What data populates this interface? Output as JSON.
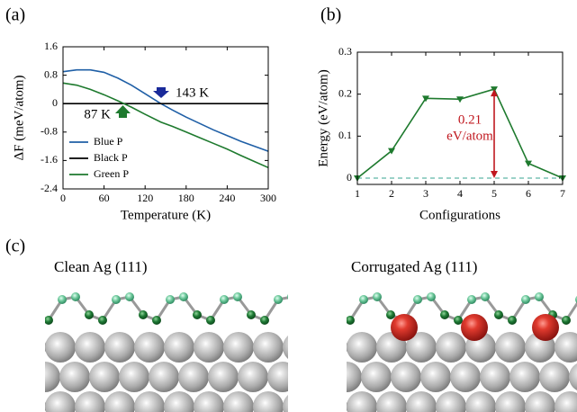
{
  "chart_data": [
    {
      "type": "line",
      "panel": "(a)",
      "xlabel": "Temperature (K)",
      "ylabel": "ΔF (meV/atom)",
      "x": [
        0,
        20,
        40,
        60,
        80,
        100,
        120,
        143,
        160,
        180,
        200,
        220,
        240,
        260,
        280,
        300
      ],
      "series": [
        {
          "name": "Blue P",
          "color": "#1f5fa6",
          "values": [
            0.9,
            0.95,
            0.95,
            0.88,
            0.72,
            0.52,
            0.28,
            0,
            -0.18,
            -0.38,
            -0.56,
            -0.74,
            -0.9,
            -1.06,
            -1.2,
            -1.34
          ]
        },
        {
          "name": "Black P",
          "color": "#000000",
          "values": [
            0,
            0,
            0,
            0,
            0,
            0,
            0,
            0,
            0,
            0,
            0,
            0,
            0,
            0,
            0,
            0
          ]
        },
        {
          "name": "Green P",
          "color": "#1e7a2e",
          "values": [
            0.58,
            0.52,
            0.4,
            0.25,
            0.08,
            -0.1,
            -0.3,
            -0.52,
            -0.64,
            -0.8,
            -0.96,
            -1.12,
            -1.28,
            -1.46,
            -1.63,
            -1.8
          ]
        }
      ],
      "annotations": [
        {
          "text": "143 K",
          "color": "#1a2a9a"
        },
        {
          "text": "87 K",
          "color": "#1e7a2e"
        }
      ],
      "xlim": [
        0,
        300
      ],
      "xticks": [
        0,
        60,
        120,
        180,
        240,
        300
      ],
      "ylim": [
        -2.4,
        1.6
      ],
      "yticks": [
        -2.4,
        -1.6,
        -0.8,
        0,
        0.8,
        1.6
      ],
      "legend": "lower left"
    },
    {
      "type": "line",
      "panel": "(b)",
      "xlabel": "Configurations",
      "ylabel": "Energy (eV/atom)",
      "x": [
        1,
        2,
        3,
        4,
        5,
        6,
        7
      ],
      "series": [
        {
          "color": "#1e7a2e",
          "values": [
            0,
            0.065,
            0.19,
            0.188,
            0.212,
            0.035,
            0
          ]
        }
      ],
      "reference_line": {
        "value": 0,
        "color": "#5fb8a8"
      },
      "annotation": {
        "lines": [
          "0.21",
          "eV/atom"
        ],
        "color": "#c0181f"
      },
      "xlim": [
        1,
        7
      ],
      "xticks": [
        1,
        2,
        3,
        4,
        5,
        6,
        7
      ],
      "ylim": [
        -0.015,
        0.3
      ],
      "yticks": [
        0,
        0.1,
        0.2,
        0.3
      ]
    }
  ],
  "figure_c": {
    "panel": "(c)",
    "captions": [
      "Clean Ag (111)",
      "Corrugated Ag (111)"
    ]
  }
}
